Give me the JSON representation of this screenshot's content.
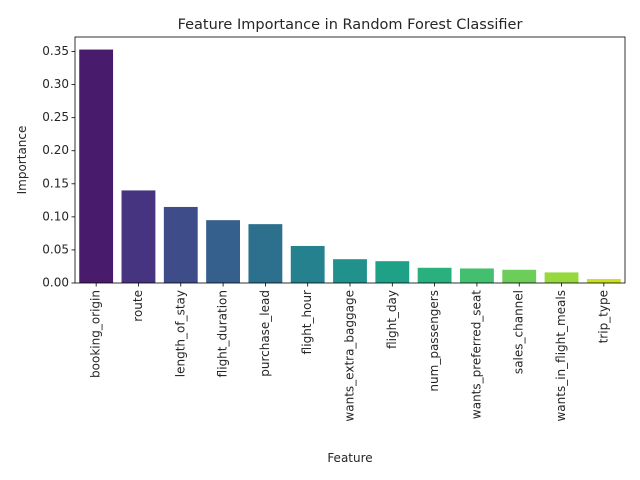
{
  "chart_data": {
    "type": "bar",
    "title": "Feature Importance in Random Forest Classifier",
    "xlabel": "Feature",
    "ylabel": "Importance",
    "categories": [
      "booking_origin",
      "route",
      "length_of_stay",
      "flight_duration",
      "purchase_lead",
      "flight_hour",
      "wants_extra_baggage",
      "flight_day",
      "num_passengers",
      "wants_preferred_seat",
      "sales_channel",
      "wants_in_flight_meals",
      "trip_type"
    ],
    "values": [
      0.353,
      0.14,
      0.115,
      0.095,
      0.089,
      0.056,
      0.036,
      0.033,
      0.023,
      0.022,
      0.02,
      0.016,
      0.006
    ],
    "colors": [
      "#481b6d",
      "#463480",
      "#3e4c8a",
      "#355f8d",
      "#2d708e",
      "#26818e",
      "#21918c",
      "#1fa188",
      "#2ab07f",
      "#44bf70",
      "#6ccd5a",
      "#97d83f",
      "#c8e020"
    ],
    "ylim": [
      0,
      0.372
    ],
    "yticks": [
      0.0,
      0.05,
      0.1,
      0.15,
      0.2,
      0.25,
      0.3,
      0.35
    ],
    "ytick_labels": [
      "0.00",
      "0.05",
      "0.10",
      "0.15",
      "0.20",
      "0.25",
      "0.30",
      "0.35"
    ],
    "grid": false,
    "legend": "none"
  }
}
